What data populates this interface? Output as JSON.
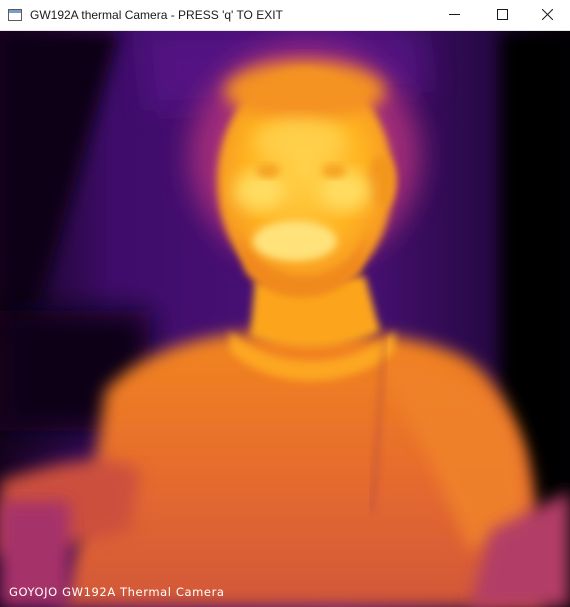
{
  "window": {
    "title": "GW192A thermal Camera - PRESS 'q' TO EXIT",
    "icon": "app-window-icon",
    "controls": {
      "minimize_icon": "minimize-icon",
      "maximize_icon": "maximize-icon",
      "close_icon": "close-icon"
    }
  },
  "camera_view": {
    "palette": "inferno",
    "overlay_caption": "GOYOJO GW192A Thermal Camera",
    "colors": {
      "background_cold": "#0a0014",
      "purple": "#3b0a6e",
      "violet": "#6a1890",
      "magenta": "#b8327a",
      "orange": "#ee7a2a",
      "hot_orange": "#ffa51f",
      "hottest": "#ffe36a"
    }
  }
}
